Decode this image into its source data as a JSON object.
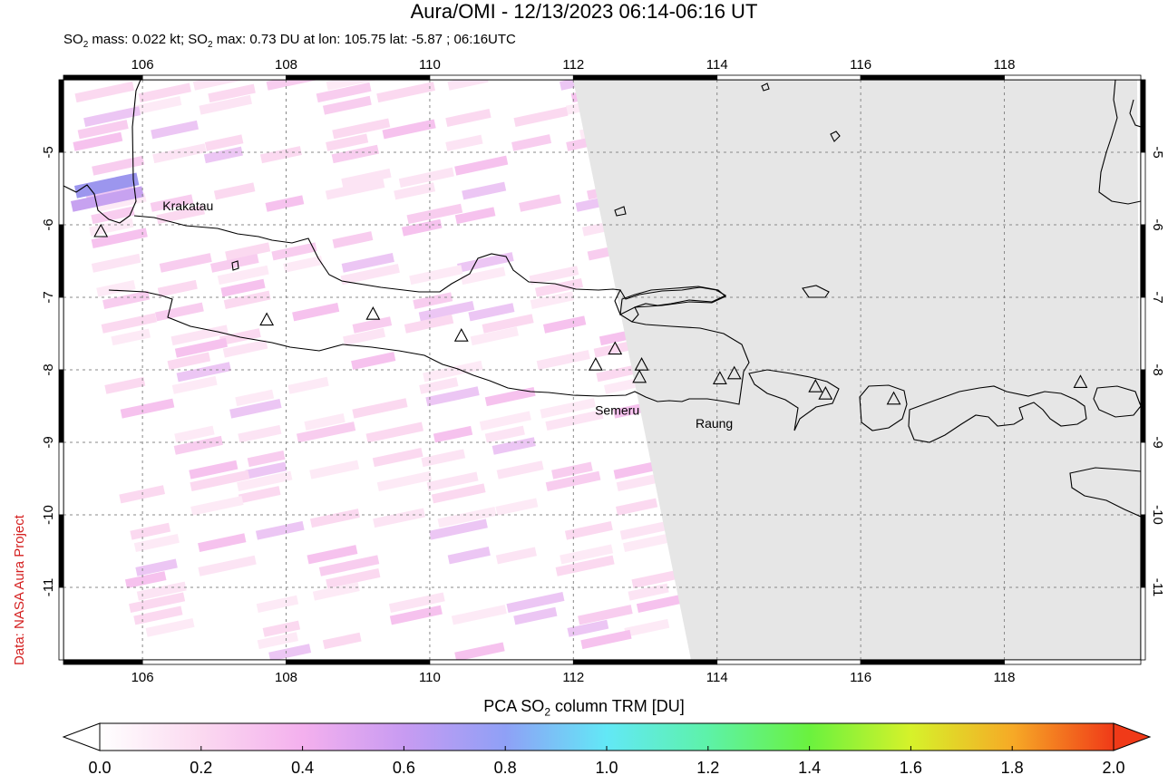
{
  "title": "Aura/OMI - 12/13/2023 06:14-06:16 UT",
  "subtitle": {
    "so2_mass_prefix": "SO",
    "so2_sub": "2",
    "so2_mass_text": " mass: 0.022 kt; SO",
    "so2_max_text": " max: 0.73 DU at lon: 105.75 lat: -5.87 ; 06:16UTC"
  },
  "credit": "Data: NASA Aura Project",
  "map": {
    "lon_range": [
      104.9,
      119.9
    ],
    "lat_range": [
      -12.0,
      -4.0
    ],
    "lon_ticks": [
      "106",
      "108",
      "110",
      "112",
      "114",
      "116",
      "118"
    ],
    "lat_ticks": [
      "-5",
      "-6",
      "-7",
      "-8",
      "-9",
      "-10",
      "-11"
    ],
    "no_data_color": "#e6e6e6",
    "volcanoes": [
      {
        "name": "Krakatau",
        "lon": 105.42,
        "lat": -6.1
      },
      {
        "name": "",
        "lon": 107.73,
        "lat": -7.32
      },
      {
        "name": "",
        "lon": 109.21,
        "lat": -7.24
      },
      {
        "name": "",
        "lon": 110.44,
        "lat": -7.54
      },
      {
        "name": "",
        "lon": 112.31,
        "lat": -7.94
      },
      {
        "name": "",
        "lon": 112.58,
        "lat": -7.72
      },
      {
        "name": "Semeru",
        "lon": 112.92,
        "lat": -8.11
      },
      {
        "name": "",
        "lon": 112.95,
        "lat": -7.94
      },
      {
        "name": "",
        "lon": 114.04,
        "lat": -8.13
      },
      {
        "name": "Raung",
        "lon": 114.24,
        "lat": -8.06
      },
      {
        "name": "",
        "lon": 115.37,
        "lat": -8.24
      },
      {
        "name": "",
        "lon": 115.51,
        "lat": -8.34
      },
      {
        "name": "",
        "lon": 116.46,
        "lat": -8.41
      },
      {
        "name": "",
        "lon": 119.06,
        "lat": -8.18
      }
    ],
    "labels": [
      {
        "text": "Krakatau",
        "lon": 106.28,
        "lat": -5.8
      },
      {
        "text": "Semeru",
        "lon": 112.3,
        "lat": -8.62
      },
      {
        "text": "Raung",
        "lon": 113.7,
        "lat": -8.8
      }
    ]
  },
  "colorbar": {
    "title_prefix": "PCA SO",
    "title_sub": "2",
    "title_suffix": " column TRM [DU]",
    "ticks": [
      "0.0",
      "0.2",
      "0.4",
      "0.6",
      "0.8",
      "1.0",
      "1.2",
      "1.4",
      "1.6",
      "1.8",
      "2.0"
    ],
    "range": [
      0.0,
      2.0
    ],
    "colors": [
      "#ffffff",
      "#fbd9f0",
      "#f4b0ee",
      "#c89bf2",
      "#8fa0f6",
      "#62e8f6",
      "#5df2a8",
      "#6af23e",
      "#d6f22a",
      "#f6aa26",
      "#f03a18"
    ]
  }
}
